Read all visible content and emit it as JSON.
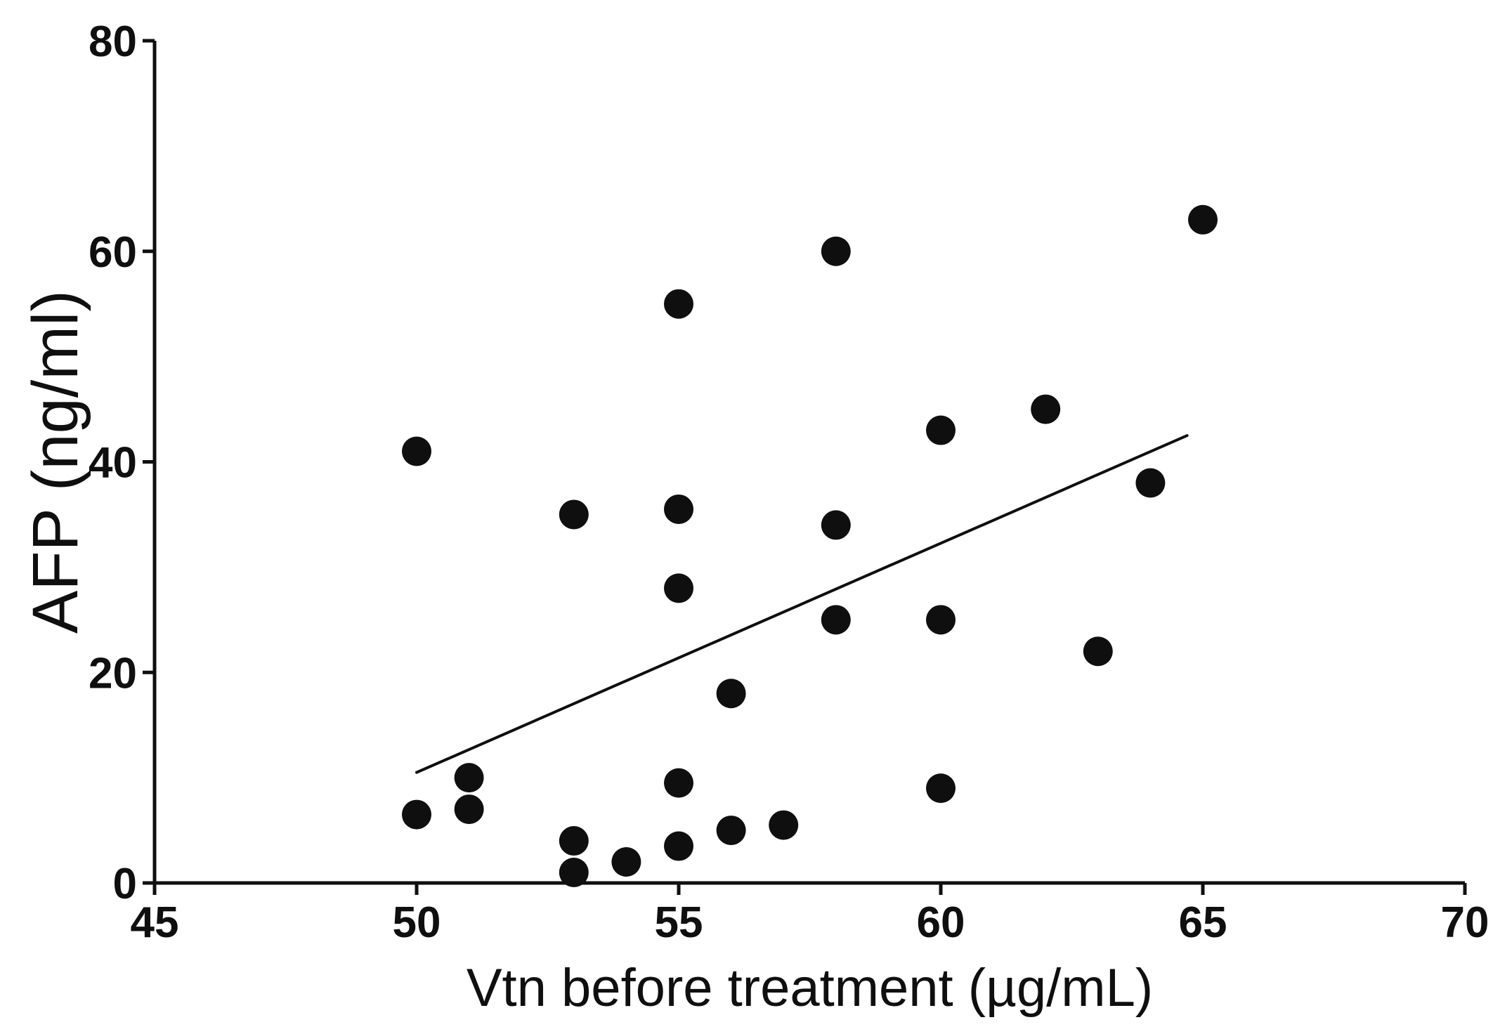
{
  "figure": {
    "background": "#ffffff",
    "ink_color": "#0f0f0f"
  },
  "chart_data": {
    "type": "scatter",
    "title": "",
    "xlabel": "Vtn before treatment (µg/mL)",
    "ylabel": "AFP (ng/ml)",
    "xlim": [
      45,
      70
    ],
    "ylim": [
      0,
      80
    ],
    "x_ticks": [
      45,
      50,
      55,
      60,
      65,
      70
    ],
    "y_ticks": [
      0,
      20,
      40,
      60,
      80
    ],
    "grid": false,
    "legend": "none",
    "marker": "filled-circle",
    "points": [
      [
        50,
        41
      ],
      [
        50,
        6.5
      ],
      [
        51,
        10
      ],
      [
        51,
        7
      ],
      [
        53,
        35
      ],
      [
        53,
        4
      ],
      [
        53,
        1
      ],
      [
        54,
        2
      ],
      [
        55,
        55
      ],
      [
        55,
        35.5
      ],
      [
        55,
        28
      ],
      [
        55,
        9.5
      ],
      [
        55,
        3.5
      ],
      [
        56,
        18
      ],
      [
        56,
        5
      ],
      [
        57,
        5.5
      ],
      [
        58,
        60
      ],
      [
        58,
        34
      ],
      [
        58,
        25
      ],
      [
        60,
        43
      ],
      [
        60,
        25
      ],
      [
        60,
        9
      ],
      [
        62,
        45
      ],
      [
        63,
        22
      ],
      [
        64,
        38
      ],
      [
        65,
        63
      ]
    ],
    "trend_line": {
      "x1": 50,
      "y1": 10.5,
      "x2": 64.7,
      "y2": 42.5
    }
  }
}
